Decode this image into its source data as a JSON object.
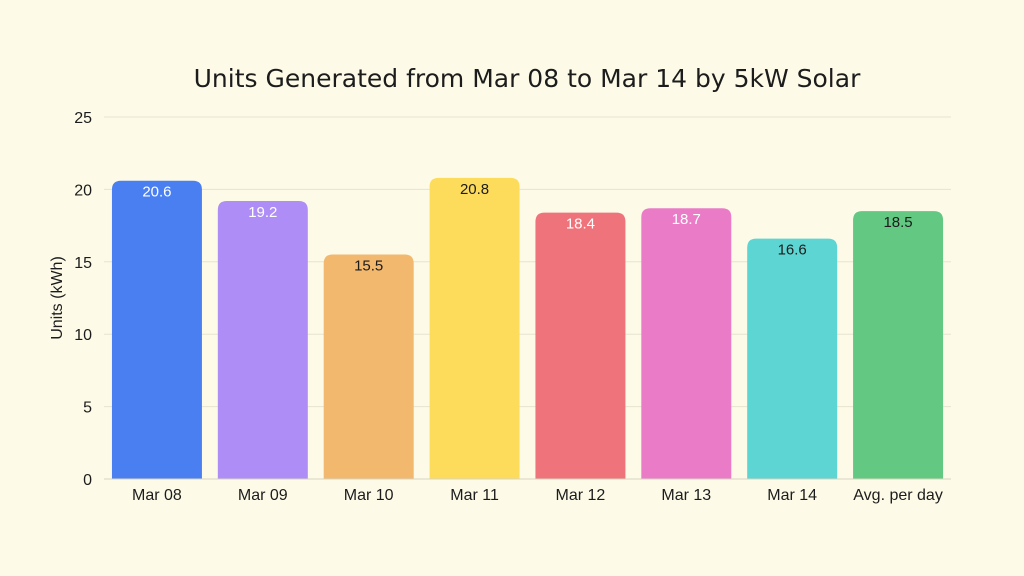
{
  "chart_data": {
    "type": "bar",
    "title": "Units Generated from Mar 08 to Mar 14 by 5kW Solar",
    "xlabel": "",
    "ylabel": "Units (kWh)",
    "ylim": [
      0,
      25
    ],
    "yticks": [
      0,
      5,
      10,
      15,
      20,
      25
    ],
    "grid": true,
    "categories": [
      "Mar 08",
      "Mar 09",
      "Mar 10",
      "Mar 11",
      "Mar 12",
      "Mar 13",
      "Mar 14",
      "Avg. per day"
    ],
    "values": [
      20.6,
      19.2,
      15.5,
      20.8,
      18.4,
      18.7,
      16.6,
      18.5
    ],
    "bar_colors": [
      "#4a7ff2",
      "#ae8ef6",
      "#f2b86d",
      "#fddc5c",
      "#ef737b",
      "#ea7cc7",
      "#5dd5d2",
      "#62c882"
    ],
    "label_colors": [
      "#ffffff",
      "#ffffff",
      "#1c1c1c",
      "#1c1c1c",
      "#ffffff",
      "#ffffff",
      "#1c1c1c",
      "#1c1c1c"
    ]
  }
}
